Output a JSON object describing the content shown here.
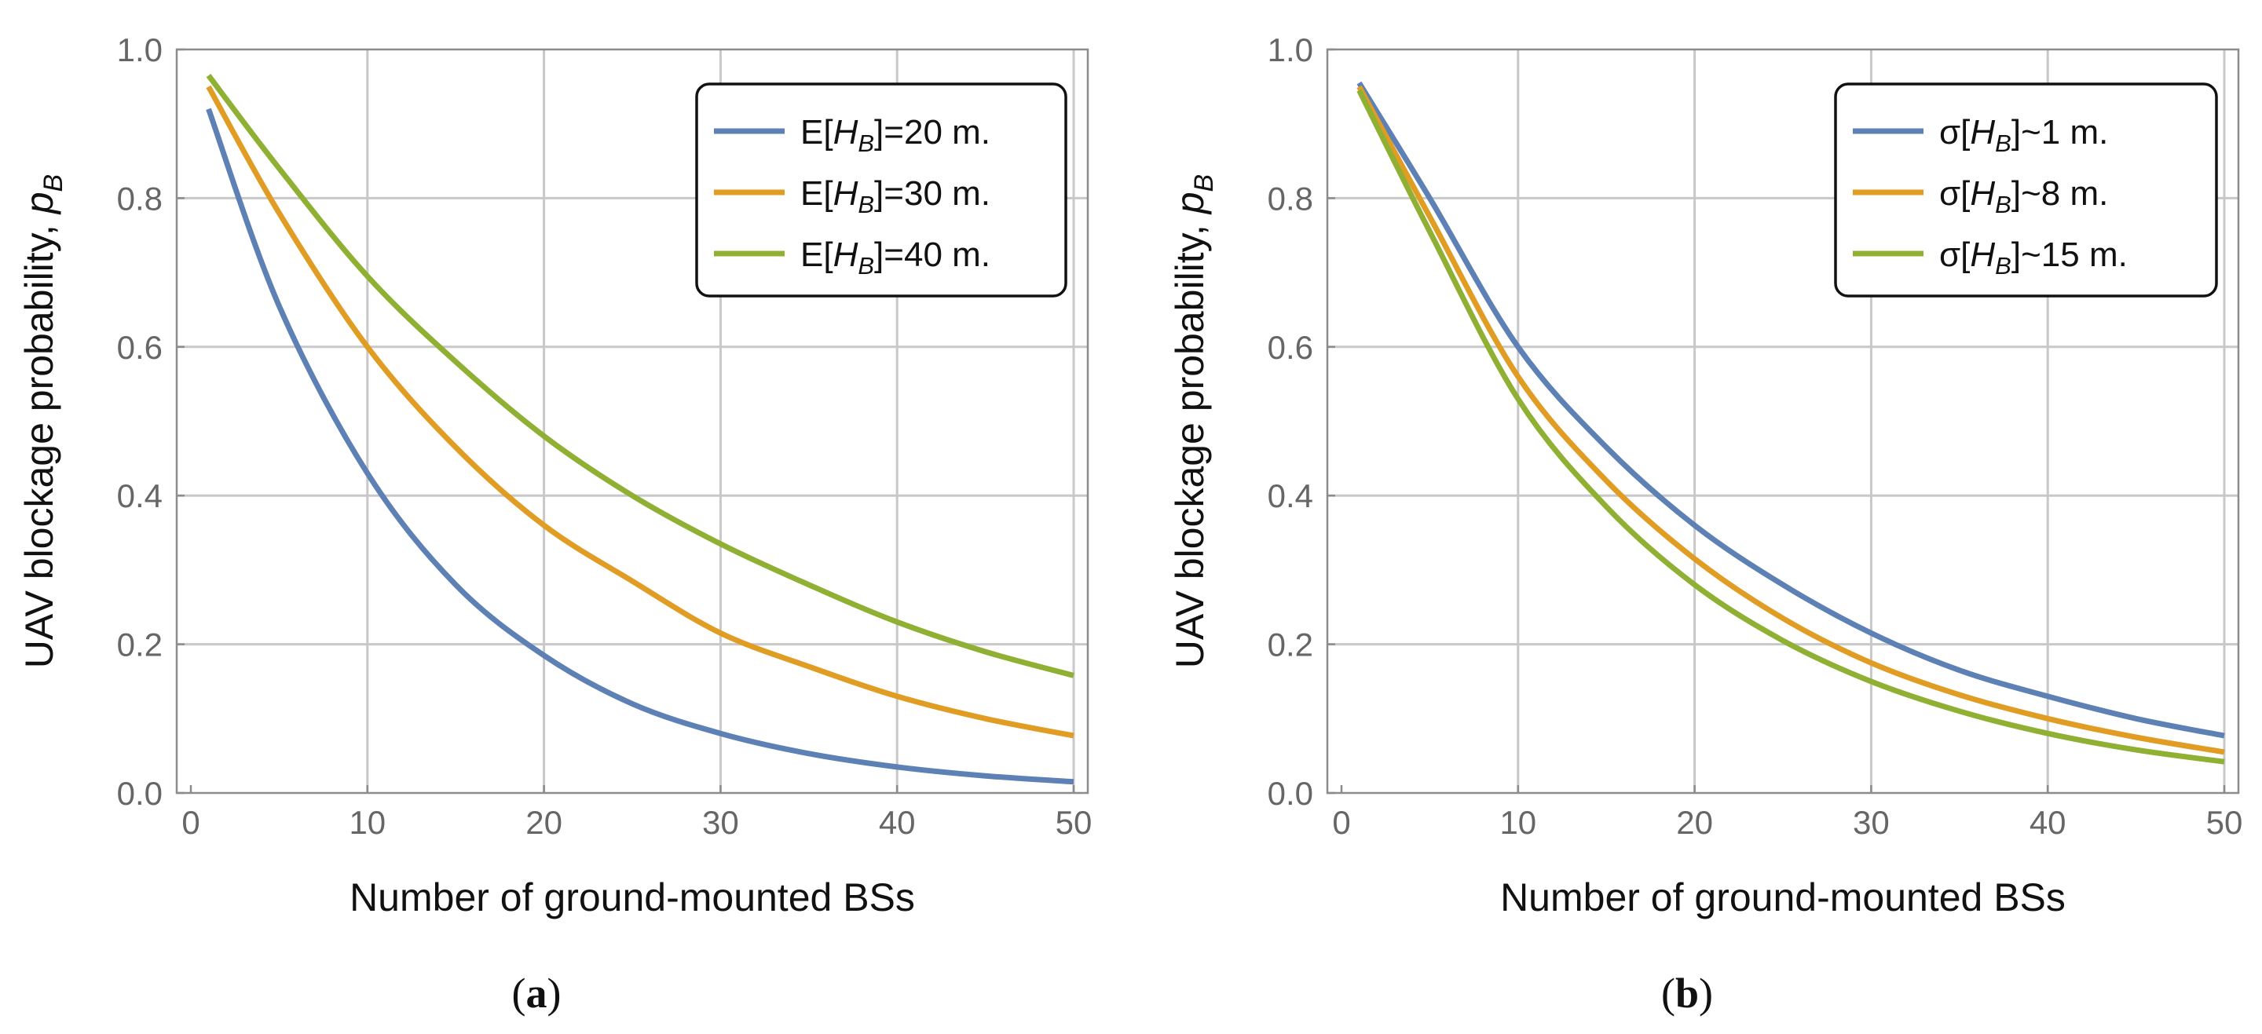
{
  "chart_data": [
    {
      "type": "line",
      "panel": "a",
      "caption": "(a)",
      "xlabel": "Number of ground-mounted BSs",
      "ylabel": "UAV blockage probability, p_B",
      "ylabel_main": "UAV blockage probability, ",
      "ylabel_var": "p",
      "ylabel_sub": "B",
      "xlim": [
        0,
        50
      ],
      "ylim": [
        0,
        1
      ],
      "xticks": [
        "0",
        "10",
        "20",
        "30",
        "40",
        "50"
      ],
      "yticks": [
        "0.0",
        "0.2",
        "0.4",
        "0.6",
        "0.8",
        "1.0"
      ],
      "grid": true,
      "legend_position": "top-right",
      "x": [
        1,
        5,
        10,
        15,
        20,
        25,
        30,
        35,
        40,
        45,
        50
      ],
      "series": [
        {
          "name": "E[H_B]=20 m.",
          "prefix": "E[",
          "var": "H",
          "sub": "B",
          "suffix": "]=20 m.",
          "color": "#5e81b5",
          "values": [
            0.92,
            0.655,
            0.43,
            0.28,
            0.185,
            0.12,
            0.08,
            0.053,
            0.035,
            0.023,
            0.015
          ]
        },
        {
          "name": "E[H_B]=30 m.",
          "prefix": "E[",
          "var": "H",
          "sub": "B",
          "suffix": "]=30 m.",
          "color": "#e19c24",
          "values": [
            0.95,
            0.78,
            0.6,
            0.465,
            0.36,
            0.285,
            0.215,
            0.17,
            0.13,
            0.1,
            0.077
          ]
        },
        {
          "name": "E[H_B]=40 m.",
          "prefix": "E[",
          "var": "H",
          "sub": "B",
          "suffix": "]=40 m.",
          "color": "#8fb032",
          "values": [
            0.965,
            0.84,
            0.695,
            0.58,
            0.48,
            0.4,
            0.335,
            0.28,
            0.23,
            0.19,
            0.158
          ]
        }
      ]
    },
    {
      "type": "line",
      "panel": "b",
      "caption": "(b)",
      "xlabel": "Number of ground-mounted BSs",
      "ylabel": "UAV blockage probability, p_B",
      "ylabel_main": "UAV blockage probability, ",
      "ylabel_var": "p",
      "ylabel_sub": "B",
      "xlim": [
        0,
        50
      ],
      "ylim": [
        0,
        1
      ],
      "xticks": [
        "0",
        "10",
        "20",
        "30",
        "40",
        "50"
      ],
      "yticks": [
        "0.0",
        "0.2",
        "0.4",
        "0.6",
        "0.8",
        "1.0"
      ],
      "grid": true,
      "legend_position": "top-right",
      "x": [
        1,
        5,
        10,
        15,
        20,
        25,
        30,
        35,
        40,
        45,
        50
      ],
      "series": [
        {
          "name": "σ[H_B]~1 m.",
          "prefix": "σ[",
          "var": "H",
          "sub": "B",
          "suffix": "]~1 m.",
          "color": "#5e81b5",
          "values": [
            0.955,
            0.8,
            0.6,
            0.465,
            0.36,
            0.28,
            0.215,
            0.165,
            0.13,
            0.1,
            0.077
          ]
        },
        {
          "name": "σ[H_B]~8 m.",
          "prefix": "σ[",
          "var": "H",
          "sub": "B",
          "suffix": "]~8 m.",
          "color": "#e19c24",
          "values": [
            0.95,
            0.775,
            0.56,
            0.42,
            0.315,
            0.235,
            0.175,
            0.132,
            0.1,
            0.075,
            0.055
          ]
        },
        {
          "name": "σ[H_B]~15 m.",
          "prefix": "σ[",
          "var": "H",
          "sub": "B",
          "suffix": "]~15 m.",
          "color": "#8fb032",
          "values": [
            0.945,
            0.755,
            0.53,
            0.385,
            0.28,
            0.205,
            0.15,
            0.11,
            0.08,
            0.058,
            0.042
          ]
        }
      ]
    }
  ]
}
